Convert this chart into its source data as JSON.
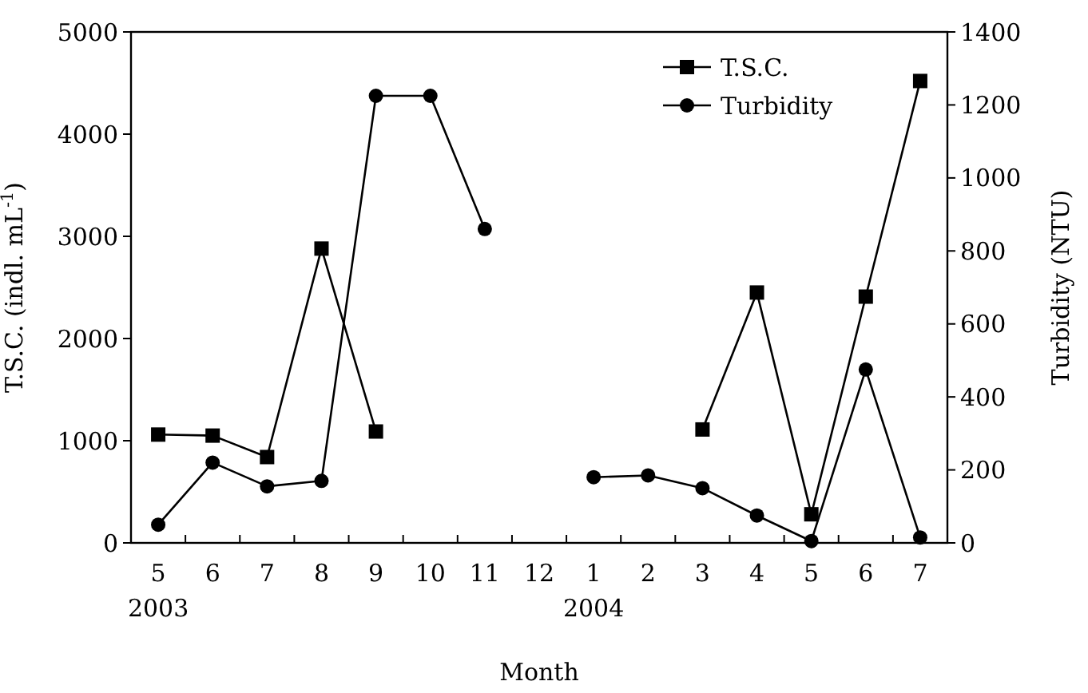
{
  "chart_data": {
    "type": "line",
    "xlabel": "Month",
    "ylabel": "T.S.C. (indl. mL$^{-1}$)",
    "y2label": "Turbidity (NTU)",
    "categories": [
      "5\n2003",
      "6",
      "7",
      "8",
      "9",
      "10",
      "11",
      "12",
      "1\n2004",
      "2",
      "3",
      "4",
      "5",
      "6",
      "7"
    ],
    "ylim": [
      0,
      5000
    ],
    "yticks": [
      0,
      1000,
      2000,
      3000,
      4000,
      5000
    ],
    "y2lim": [
      0,
      1400
    ],
    "y2ticks": [
      0,
      200,
      400,
      600,
      800,
      1000,
      1200,
      1400
    ],
    "legend": "top right",
    "grid": false,
    "series": [
      {
        "name": "T.S.C.",
        "color": "#000000",
        "marker": "square",
        "values": [
          1060,
          1050,
          840,
          2880,
          1090,
          null,
          null,
          null,
          null,
          null,
          1110,
          2450,
          280,
          2410,
          4520
        ]
      },
      {
        "name": "Turbidity",
        "color": "#000000",
        "marker": "circle",
        "axis": "y2",
        "values": [
          50,
          220,
          155,
          170,
          1225,
          1225,
          860,
          null,
          180,
          185,
          150,
          75,
          5,
          475,
          15
        ]
      }
    ]
  }
}
